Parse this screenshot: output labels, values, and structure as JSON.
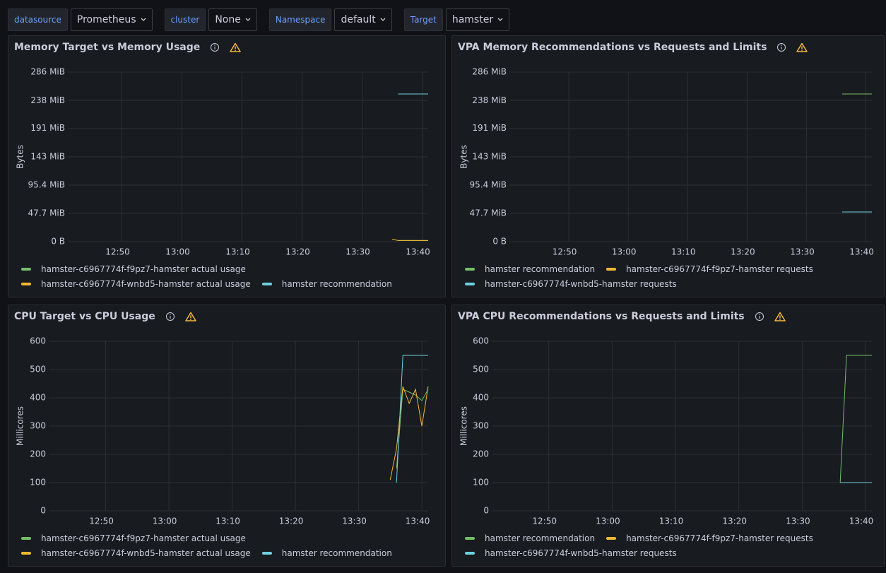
{
  "variables": [
    {
      "label": "datasource",
      "value": "Prometheus"
    },
    {
      "label": "cluster",
      "value": "None"
    },
    {
      "label": "Namespace",
      "value": "default"
    },
    {
      "label": "Target",
      "value": "hamster"
    }
  ],
  "chart_data": [
    {
      "type": "line",
      "title": "Memory Target vs Memory Usage",
      "ylabel": "Bytes",
      "x": [
        "13:35",
        "13:36",
        "13:37",
        "13:38",
        "13:39",
        "13:40",
        "13:41"
      ],
      "xlim": [
        "12:41",
        "13:41"
      ],
      "xticks": [
        "12:50",
        "13:00",
        "13:10",
        "13:20",
        "13:30",
        "13:40"
      ],
      "ylim": [
        0,
        286
      ],
      "yticks": [
        {
          "value": 0,
          "label": "0 B"
        },
        {
          "value": 47.7,
          "label": "47.7 MiB"
        },
        {
          "value": 95.4,
          "label": "95.4 MiB"
        },
        {
          "value": 143,
          "label": "143 MiB"
        },
        {
          "value": 191,
          "label": "191 MiB"
        },
        {
          "value": 238,
          "label": "238 MiB"
        },
        {
          "value": 286,
          "label": "286 MiB"
        }
      ],
      "grid": true,
      "series": [
        {
          "name": "hamster-c6967774f-f9pz7-hamster actual usage",
          "color": "#73bf69",
          "values": [
            null,
            2,
            2,
            2,
            2,
            2,
            2
          ]
        },
        {
          "name": "hamster-c6967774f-wnbd5-hamster actual usage",
          "color": "#f2b830",
          "values": [
            4,
            2,
            2,
            2,
            2,
            2,
            2
          ]
        },
        {
          "name": "hamster recommendation",
          "color": "#6ed0e0",
          "values": [
            null,
            249,
            249,
            249,
            249,
            249,
            249
          ]
        }
      ]
    },
    {
      "type": "line",
      "title": "VPA Memory Recommendations vs Requests and Limits",
      "ylabel": "Bytes",
      "x": [
        "13:35",
        "13:36",
        "13:37",
        "13:38",
        "13:39",
        "13:40",
        "13:41"
      ],
      "xlim": [
        "12:40",
        "13:41"
      ],
      "xticks": [
        "12:50",
        "13:00",
        "13:10",
        "13:20",
        "13:30",
        "13:40"
      ],
      "ylim": [
        0,
        286
      ],
      "yticks": [
        {
          "value": 0,
          "label": "0 B"
        },
        {
          "value": 47.7,
          "label": "47.7 MiB"
        },
        {
          "value": 95.4,
          "label": "95.4 MiB"
        },
        {
          "value": 143,
          "label": "143 MiB"
        },
        {
          "value": 191,
          "label": "191 MiB"
        },
        {
          "value": 238,
          "label": "238 MiB"
        },
        {
          "value": 286,
          "label": "286 MiB"
        }
      ],
      "grid": true,
      "series": [
        {
          "name": "hamster recommendation",
          "color": "#73bf69",
          "values": [
            null,
            249,
            249,
            249,
            249,
            249,
            249
          ]
        },
        {
          "name": "hamster-c6967774f-f9pz7-hamster requests",
          "color": "#f2b830",
          "values": [
            null,
            50,
            50,
            50,
            50,
            50,
            50
          ]
        },
        {
          "name": "hamster-c6967774f-wnbd5-hamster requests",
          "color": "#6ed0e0",
          "values": [
            null,
            50,
            50,
            50,
            50,
            50,
            50
          ]
        }
      ]
    },
    {
      "type": "line",
      "title": "CPU Target vs CPU Usage",
      "ylabel": "Millicores",
      "x": [
        "13:35",
        "13:36",
        "13:37",
        "13:38",
        "13:39",
        "13:40",
        "13:41"
      ],
      "xlim": [
        "12:41",
        "13:41"
      ],
      "xticks": [
        "12:50",
        "13:00",
        "13:10",
        "13:20",
        "13:30",
        "13:40"
      ],
      "ylim": [
        0,
        600
      ],
      "yticks": [
        0,
        100,
        200,
        300,
        400,
        500,
        600
      ],
      "grid": true,
      "series": [
        {
          "name": "hamster-c6967774f-f9pz7-hamster actual usage",
          "color": "#73bf69",
          "values": [
            null,
            150,
            430,
            420,
            410,
            390,
            430
          ]
        },
        {
          "name": "hamster-c6967774f-wnbd5-hamster actual usage",
          "color": "#f2b830",
          "values": [
            110,
            220,
            440,
            380,
            430,
            300,
            440
          ]
        },
        {
          "name": "hamster recommendation",
          "color": "#6ed0e0",
          "values": [
            null,
            100,
            550,
            550,
            550,
            550,
            550
          ]
        }
      ]
    },
    {
      "type": "line",
      "title": "VPA CPU Recommendations vs Requests and Limits",
      "ylabel": "Millicores",
      "x": [
        "13:35",
        "13:36",
        "13:37",
        "13:38",
        "13:39",
        "13:40",
        "13:41"
      ],
      "xlim": [
        "12:41",
        "13:41"
      ],
      "xticks": [
        "12:50",
        "13:00",
        "13:10",
        "13:20",
        "13:30",
        "13:40"
      ],
      "ylim": [
        0,
        600
      ],
      "yticks": [
        0,
        100,
        200,
        300,
        400,
        500,
        600
      ],
      "grid": true,
      "series": [
        {
          "name": "hamster recommendation",
          "color": "#73bf69",
          "values": [
            null,
            100,
            550,
            550,
            550,
            550,
            550
          ]
        },
        {
          "name": "hamster-c6967774f-f9pz7-hamster requests",
          "color": "#f2b830",
          "values": [
            null,
            100,
            100,
            100,
            100,
            100,
            100
          ]
        },
        {
          "name": "hamster-c6967774f-wnbd5-hamster requests",
          "color": "#6ed0e0",
          "values": [
            null,
            100,
            100,
            100,
            100,
            100,
            100
          ]
        }
      ]
    }
  ]
}
